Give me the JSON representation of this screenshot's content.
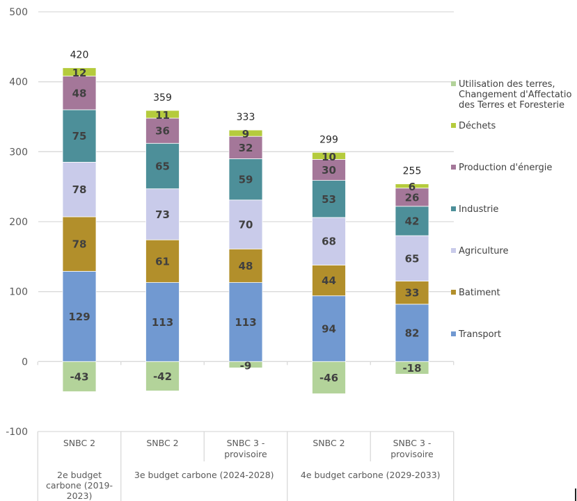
{
  "chart_data": {
    "type": "bar",
    "stacked": true,
    "title": "",
    "xlabel": "",
    "ylabel": "",
    "ylim": [
      -100,
      500
    ],
    "yticks": [
      -100,
      0,
      100,
      200,
      300,
      400,
      500
    ],
    "grid": true,
    "legend_position": "right",
    "categories": [
      {
        "scenario": "SNBC 2",
        "group": "2e budget carbone (2019-2023)"
      },
      {
        "scenario": "SNBC 2",
        "group": "3e budget carbone (2024-2028)"
      },
      {
        "scenario": "SNBC 3 - provisoire",
        "group": "3e budget carbone (2024-2028)"
      },
      {
        "scenario": "SNBC 2",
        "group": "4e budget carbone (2029-2033)"
      },
      {
        "scenario": "SNBC 3 - provisoire",
        "group": "4e budget carbone (2029-2033)"
      }
    ],
    "scenario_labels": [
      [
        "SNBC 2"
      ],
      [
        "SNBC 2"
      ],
      [
        "SNBC 3 -",
        "provisoire"
      ],
      [
        "SNBC 2"
      ],
      [
        "SNBC 3 -",
        "provisoire"
      ]
    ],
    "groups": [
      {
        "label_lines": [
          "2e budget",
          "carbone (2019-",
          "2023)"
        ],
        "span": [
          0,
          0
        ]
      },
      {
        "label_lines": [
          "3e budget carbone (2024-2028)"
        ],
        "span": [
          1,
          2
        ]
      },
      {
        "label_lines": [
          "4e budget carbone (2029-2033)"
        ],
        "span": [
          3,
          4
        ]
      }
    ],
    "series": [
      {
        "name": "Transport",
        "color": "#7199d1",
        "values": [
          129,
          113,
          113,
          94,
          82
        ]
      },
      {
        "name": "Batiment",
        "color": "#b28f2b",
        "values": [
          78,
          61,
          48,
          44,
          33
        ]
      },
      {
        "name": "Agriculture",
        "color": "#c9cbea",
        "values": [
          78,
          73,
          70,
          68,
          65
        ]
      },
      {
        "name": "Industrie",
        "color": "#4d8f99",
        "values": [
          75,
          65,
          59,
          53,
          42
        ]
      },
      {
        "name": "Production d'énergie",
        "color": "#a47799",
        "values": [
          48,
          36,
          32,
          30,
          26
        ]
      },
      {
        "name": "Déchets",
        "color": "#b5cb3d",
        "values": [
          12,
          11,
          9,
          10,
          6
        ]
      },
      {
        "name": "Utilisation des terres, Changement d'Affectation des Terres et Foresterie",
        "color": "#b3d39a",
        "values": [
          -43,
          -42,
          -9,
          -46,
          -18
        ]
      }
    ],
    "totals": [
      420,
      359,
      333,
      299,
      255
    ],
    "legend": [
      {
        "lines": [
          "Utilisation des terres,",
          "Changement d'Affectatio",
          "des Terres et Foresterie"
        ],
        "color": "#b3d39a"
      },
      {
        "lines": [
          "Déchets"
        ],
        "color": "#b5cb3d"
      },
      {
        "lines": [
          "Production d'énergie"
        ],
        "color": "#a47799"
      },
      {
        "lines": [
          "Industrie"
        ],
        "color": "#4d8f99"
      },
      {
        "lines": [
          "Agriculture"
        ],
        "color": "#c9cbea"
      },
      {
        "lines": [
          "Batiment"
        ],
        "color": "#b28f2b"
      },
      {
        "lines": [
          "Transport"
        ],
        "color": "#7199d1"
      }
    ]
  }
}
